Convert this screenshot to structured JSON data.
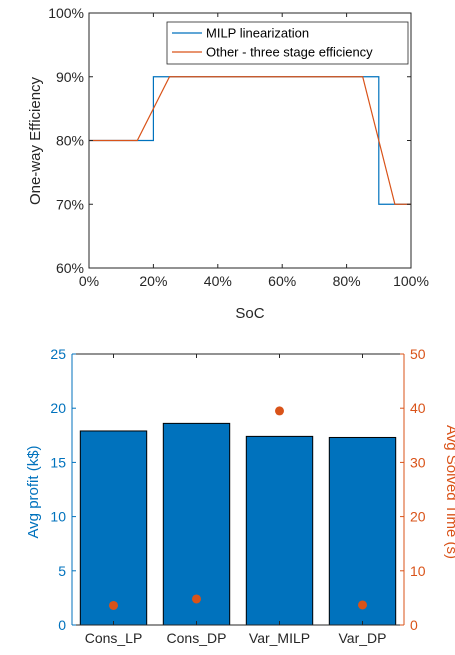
{
  "colors": {
    "series_blue": "#0072BD",
    "series_orange": "#D95319",
    "axis": "#262626",
    "bar_fill": "#0072BD"
  },
  "chart_data": [
    {
      "type": "line",
      "xlabel": "SoC",
      "ylabel": "One-way Efficiency",
      "xlim": [
        0,
        100
      ],
      "ylim": [
        60,
        100
      ],
      "xticks": [
        "0%",
        "20%",
        "40%",
        "60%",
        "80%",
        "100%"
      ],
      "xtick_values": [
        0,
        20,
        40,
        60,
        80,
        100
      ],
      "yticks": [
        "60%",
        "70%",
        "80%",
        "90%",
        "100%"
      ],
      "ytick_values": [
        60,
        70,
        80,
        90,
        100
      ],
      "legend_position": "top-right",
      "series": [
        {
          "name": "MILP linearization",
          "x": [
            0,
            20,
            20,
            90,
            90,
            100
          ],
          "y": [
            80,
            80,
            90,
            90,
            70,
            70
          ]
        },
        {
          "name": "Other - three stage efficiency",
          "x": [
            0,
            15,
            25,
            85,
            95,
            100
          ],
          "y": [
            80,
            80,
            90,
            90,
            70,
            70
          ]
        }
      ]
    },
    {
      "type": "bar",
      "categories": [
        "Cons_LP",
        "Cons_DP",
        "Var_MILP",
        "Var_DP"
      ],
      "ylabel": "Avg profit (k$)",
      "ylim": [
        0,
        25
      ],
      "yticks": [
        "0",
        "5",
        "10",
        "15",
        "20",
        "25"
      ],
      "ytick_values": [
        0,
        5,
        10,
        15,
        20,
        25
      ],
      "values": [
        17.9,
        18.6,
        17.4,
        17.3
      ],
      "secondary": {
        "type": "scatter",
        "ylabel": "Avg Solved Time (s)",
        "ylim": [
          0,
          50
        ],
        "yticks": [
          "0",
          "10",
          "20",
          "30",
          "40",
          "50"
        ],
        "ytick_values": [
          0,
          10,
          20,
          30,
          40,
          50
        ],
        "values": [
          3.6,
          4.8,
          39.5,
          3.7
        ]
      }
    }
  ]
}
